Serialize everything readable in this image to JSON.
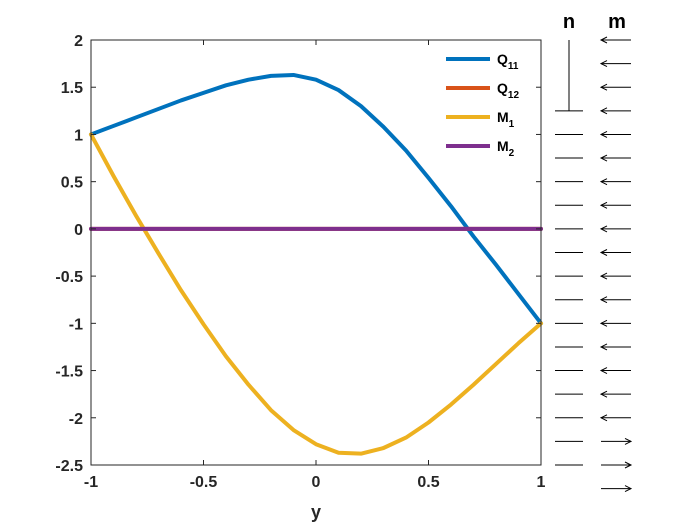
{
  "chart_data": {
    "type": "line",
    "xlabel": "y",
    "ylabel": "",
    "title": "",
    "xlim": [
      -1,
      1
    ],
    "ylim": [
      -2.5,
      2
    ],
    "x_ticks": [
      "-1",
      "-0.5",
      "0",
      "0.5",
      "1"
    ],
    "y_ticks": [
      "2",
      "1.5",
      "1",
      "0.5",
      "0",
      "-0.5",
      "-1",
      "-1.5",
      "-2",
      "-2.5"
    ],
    "grid": false,
    "legend_position": "top-right",
    "x": [
      -1.0,
      -0.9,
      -0.8,
      -0.7,
      -0.6,
      -0.5,
      -0.4,
      -0.3,
      -0.2,
      -0.1,
      0.0,
      0.1,
      0.2,
      0.3,
      0.4,
      0.5,
      0.6,
      0.7,
      0.8,
      0.9,
      1.0
    ],
    "series": [
      {
        "name": "Q",
        "subscript": "11",
        "color": "#0072BD",
        "values": [
          1.0,
          1.09,
          1.18,
          1.27,
          1.36,
          1.44,
          1.52,
          1.58,
          1.62,
          1.63,
          1.58,
          1.47,
          1.3,
          1.08,
          0.83,
          0.54,
          0.24,
          -0.08,
          -0.38,
          -0.69,
          -1.0
        ]
      },
      {
        "name": "Q",
        "subscript": "12",
        "color": "#D95319",
        "values": [
          0,
          0,
          0,
          0,
          0,
          0,
          0,
          0,
          0,
          0,
          0,
          0,
          0,
          0,
          0,
          0,
          0,
          0,
          0,
          0,
          0
        ]
      },
      {
        "name": "M",
        "subscript": "1",
        "color": "#EDB120",
        "values": [
          1.0,
          0.56,
          0.14,
          -0.26,
          -0.65,
          -1.01,
          -1.35,
          -1.65,
          -1.92,
          -2.13,
          -2.28,
          -2.37,
          -2.38,
          -2.32,
          -2.21,
          -2.05,
          -1.86,
          -1.65,
          -1.43,
          -1.21,
          -1.0
        ]
      },
      {
        "name": "M",
        "subscript": "2",
        "color": "#7E2F8E",
        "values": [
          0,
          0,
          0,
          0,
          0,
          0,
          0,
          0,
          0,
          0,
          0,
          0,
          0,
          0,
          0,
          0,
          0,
          0,
          0,
          0,
          0
        ]
      }
    ],
    "side_panel": {
      "headers": [
        "n",
        "m"
      ],
      "n_vertical_segment": [
        2.0,
        1.25
      ],
      "n_horizontal_levels": [
        1.25,
        1.0,
        0.75,
        0.5,
        0.25,
        0.0,
        -0.25,
        -0.5,
        -0.75,
        -1.0,
        -1.25,
        -1.5,
        -1.75,
        -2.0,
        -2.25,
        -2.5
      ],
      "m_arrows": [
        {
          "y": 2.0,
          "dir": "left"
        },
        {
          "y": 1.75,
          "dir": "left"
        },
        {
          "y": 1.5,
          "dir": "left"
        },
        {
          "y": 1.25,
          "dir": "left"
        },
        {
          "y": 1.0,
          "dir": "left"
        },
        {
          "y": 0.75,
          "dir": "left"
        },
        {
          "y": 0.5,
          "dir": "left"
        },
        {
          "y": 0.25,
          "dir": "left"
        },
        {
          "y": 0.0,
          "dir": "left"
        },
        {
          "y": -0.25,
          "dir": "left"
        },
        {
          "y": -0.5,
          "dir": "left"
        },
        {
          "y": -0.75,
          "dir": "left"
        },
        {
          "y": -1.0,
          "dir": "left"
        },
        {
          "y": -1.25,
          "dir": "left"
        },
        {
          "y": -1.5,
          "dir": "left"
        },
        {
          "y": -1.75,
          "dir": "left"
        },
        {
          "y": -2.0,
          "dir": "left"
        },
        {
          "y": -2.25,
          "dir": "right"
        },
        {
          "y": -2.5,
          "dir": "right"
        },
        {
          "y": -2.75,
          "dir": "right"
        }
      ]
    }
  }
}
